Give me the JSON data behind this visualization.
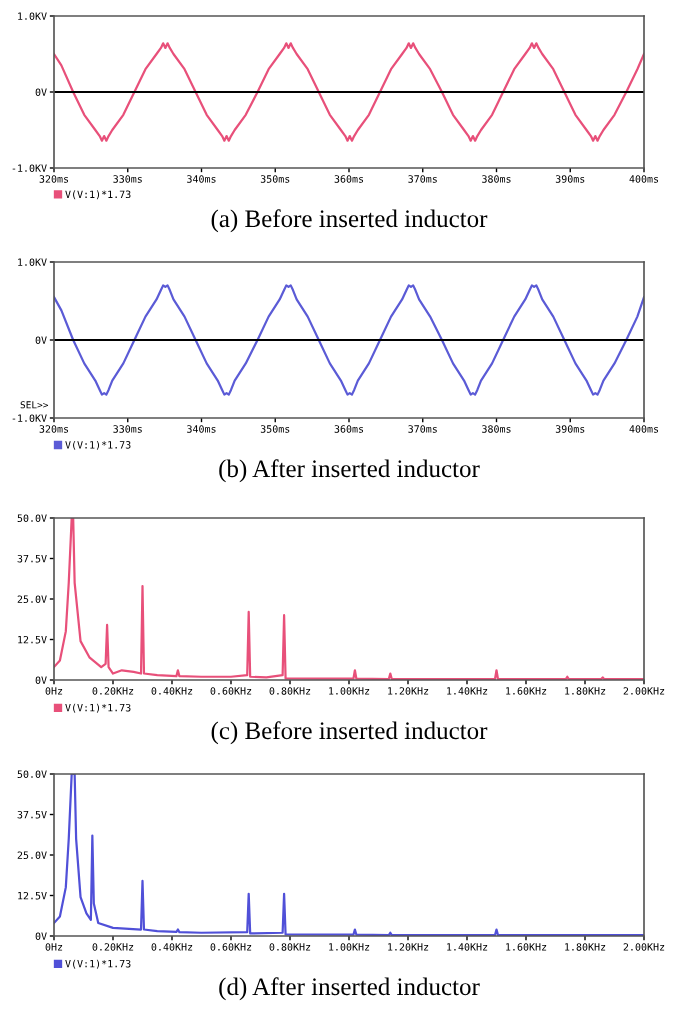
{
  "chart_data": [
    {
      "type": "line",
      "title": "(a) Before inserted inductor",
      "legend": "bottom left",
      "grid": false,
      "x": [
        320,
        321,
        322.6,
        324.1,
        325.6,
        326.2,
        326.5,
        326.8,
        327.1,
        327.4,
        327.9,
        329.4,
        330.9,
        332.4,
        333.9,
        334.5,
        334.8,
        335.1,
        335.4,
        335.7,
        336.2,
        337.7,
        339.2,
        340.7,
        342.2,
        342.8,
        343.1,
        343.4,
        343.7,
        344.0,
        344.5,
        346.0,
        347.6,
        349.1,
        350.6,
        351.2,
        351.5,
        351.8,
        352.1,
        352.4,
        352.9,
        354.4,
        355.9,
        357.4,
        358.9,
        359.5,
        359.8,
        360.1,
        360.4,
        360.7,
        361.2,
        362.7,
        364.2,
        365.7,
        367.2,
        367.8,
        368.1,
        368.4,
        368.7,
        369.0,
        369.5,
        371.0,
        372.6,
        374.1,
        375.6,
        376.2,
        376.5,
        376.8,
        377.1,
        377.4,
        377.9,
        379.4,
        380.9,
        382.4,
        383.9,
        384.5,
        384.8,
        385.1,
        385.4,
        385.7,
        386.2,
        387.7,
        389.2,
        390.7,
        392.2,
        392.8,
        393.1,
        393.4,
        393.7,
        394.0,
        394.5,
        396.0,
        397.6,
        399.1,
        400
      ],
      "series": [
        {
          "name": "V(V:1)*1.73",
          "color": "#e8507a",
          "values": [
            0.5,
            0.35,
            0,
            -0.3,
            -0.5,
            -0.58,
            -0.64,
            -0.58,
            -0.64,
            -0.58,
            -0.5,
            -0.3,
            0,
            0.3,
            0.5,
            0.58,
            0.64,
            0.58,
            0.64,
            0.58,
            0.5,
            0.3,
            0,
            -0.3,
            -0.5,
            -0.58,
            -0.64,
            -0.58,
            -0.64,
            -0.58,
            -0.5,
            -0.3,
            0,
            0.3,
            0.5,
            0.58,
            0.64,
            0.58,
            0.64,
            0.58,
            0.5,
            0.3,
            0,
            -0.3,
            -0.5,
            -0.58,
            -0.64,
            -0.58,
            -0.64,
            -0.58,
            -0.5,
            -0.3,
            0,
            0.3,
            0.5,
            0.58,
            0.64,
            0.58,
            0.64,
            0.58,
            0.5,
            0.3,
            0,
            -0.3,
            -0.5,
            -0.58,
            -0.64,
            -0.58,
            -0.64,
            -0.58,
            -0.5,
            -0.3,
            0,
            0.3,
            0.5,
            0.58,
            0.64,
            0.58,
            0.64,
            0.58,
            0.5,
            0.3,
            0,
            -0.3,
            -0.5,
            -0.58,
            -0.64,
            -0.58,
            -0.64,
            -0.58,
            -0.5,
            -0.3,
            0,
            0.3,
            0.5
          ]
        }
      ],
      "xlim": [
        320,
        400
      ],
      "ylim": [
        -1,
        1
      ],
      "xticks": [
        {
          "value": 320,
          "label": "320ms"
        },
        {
          "value": 330,
          "label": "330ms"
        },
        {
          "value": 340,
          "label": "340ms"
        },
        {
          "value": 350,
          "label": "350ms"
        },
        {
          "value": 360,
          "label": "360ms"
        },
        {
          "value": 370,
          "label": "370ms"
        },
        {
          "value": 380,
          "label": "380ms"
        },
        {
          "value": 390,
          "label": "390ms"
        },
        {
          "value": 400,
          "label": "400ms"
        }
      ],
      "yticks": [
        {
          "value": -1,
          "label": "-1.0KV"
        },
        {
          "value": 0,
          "label": "0V"
        },
        {
          "value": 1,
          "label": "1.0KV"
        }
      ],
      "ref_lines": [
        {
          "axis": "y",
          "value": 0,
          "color": "#000000"
        }
      ]
    },
    {
      "type": "line",
      "title": "(b) After inserted inductor",
      "legend": "bottom left",
      "grid": false,
      "annotations": [
        "SEL>>"
      ],
      "x": [
        320,
        321,
        322.6,
        324.1,
        325.6,
        326.2,
        326.5,
        326.8,
        327.1,
        327.4,
        327.9,
        329.4,
        330.9,
        332.4,
        333.9,
        334.5,
        334.8,
        335.1,
        335.4,
        335.7,
        336.2,
        337.7,
        339.2,
        340.7,
        342.2,
        342.8,
        343.1,
        343.4,
        343.7,
        344.0,
        344.5,
        346.0,
        347.6,
        349.1,
        350.6,
        351.2,
        351.5,
        351.8,
        352.1,
        352.4,
        352.9,
        354.4,
        355.9,
        357.4,
        358.9,
        359.5,
        359.8,
        360.1,
        360.4,
        360.7,
        361.2,
        362.7,
        364.2,
        365.7,
        367.2,
        367.8,
        368.1,
        368.4,
        368.7,
        369.0,
        369.5,
        371.0,
        372.6,
        374.1,
        375.6,
        376.2,
        376.5,
        376.8,
        377.1,
        377.4,
        377.9,
        379.4,
        380.9,
        382.4,
        383.9,
        384.5,
        384.8,
        385.1,
        385.4,
        385.7,
        386.2,
        387.7,
        389.2,
        390.7,
        392.2,
        392.8,
        393.1,
        393.4,
        393.7,
        394.0,
        394.5,
        396.0,
        397.6,
        399.1,
        400
      ],
      "series": [
        {
          "name": "V(V:1)*1.73",
          "color": "#5b5bd6",
          "values": [
            0.55,
            0.38,
            0,
            -0.3,
            -0.52,
            -0.64,
            -0.7,
            -0.68,
            -0.7,
            -0.64,
            -0.52,
            -0.3,
            0,
            0.3,
            0.52,
            0.64,
            0.7,
            0.68,
            0.7,
            0.64,
            0.52,
            0.3,
            0,
            -0.3,
            -0.52,
            -0.64,
            -0.7,
            -0.68,
            -0.7,
            -0.64,
            -0.52,
            -0.3,
            0,
            0.3,
            0.52,
            0.64,
            0.7,
            0.68,
            0.7,
            0.64,
            0.52,
            0.3,
            0,
            -0.3,
            -0.52,
            -0.64,
            -0.7,
            -0.68,
            -0.7,
            -0.64,
            -0.52,
            -0.3,
            0,
            0.3,
            0.52,
            0.64,
            0.7,
            0.68,
            0.7,
            0.64,
            0.52,
            0.3,
            0,
            -0.3,
            -0.52,
            -0.64,
            -0.7,
            -0.68,
            -0.7,
            -0.64,
            -0.52,
            -0.3,
            0,
            0.3,
            0.52,
            0.64,
            0.7,
            0.68,
            0.7,
            0.64,
            0.52,
            0.3,
            0,
            -0.3,
            -0.52,
            -0.64,
            -0.7,
            -0.68,
            -0.7,
            -0.64,
            -0.52,
            -0.3,
            0,
            0.3,
            0.55
          ]
        }
      ],
      "xlim": [
        320,
        400
      ],
      "ylim": [
        -1,
        1
      ],
      "xticks": [
        {
          "value": 320,
          "label": "320ms"
        },
        {
          "value": 330,
          "label": "330ms"
        },
        {
          "value": 340,
          "label": "340ms"
        },
        {
          "value": 350,
          "label": "350ms"
        },
        {
          "value": 360,
          "label": "360ms"
        },
        {
          "value": 370,
          "label": "370ms"
        },
        {
          "value": 380,
          "label": "380ms"
        },
        {
          "value": 390,
          "label": "390ms"
        },
        {
          "value": 400,
          "label": "400ms"
        }
      ],
      "yticks": [
        {
          "value": -1,
          "label": "-1.0KV"
        },
        {
          "value": 0,
          "label": "0V"
        },
        {
          "value": 1,
          "label": "1.0KV"
        }
      ],
      "ref_lines": [
        {
          "axis": "y",
          "value": 0,
          "color": "#000000"
        }
      ]
    },
    {
      "type": "line",
      "title": "(c) Before inserted inductor",
      "legend": "bottom left",
      "grid": false,
      "x": [
        0,
        0.02,
        0.04,
        0.05,
        0.06,
        0.065,
        0.07,
        0.09,
        0.12,
        0.16,
        0.175,
        0.18,
        0.185,
        0.2,
        0.23,
        0.27,
        0.295,
        0.3,
        0.305,
        0.35,
        0.415,
        0.42,
        0.425,
        0.5,
        0.6,
        0.655,
        0.66,
        0.665,
        0.72,
        0.775,
        0.78,
        0.785,
        0.9,
        1.015,
        1.02,
        1.025,
        1.135,
        1.14,
        1.145,
        1.3,
        1.495,
        1.5,
        1.505,
        1.735,
        1.74,
        1.745,
        1.855,
        1.86,
        1.865,
        2.0
      ],
      "series": [
        {
          "name": "V(V:1)*1.73",
          "color": "#e8507a",
          "values": [
            4,
            6,
            15,
            30,
            50,
            50,
            30,
            12,
            7,
            4,
            5,
            17,
            4,
            2,
            3,
            2.5,
            2,
            29,
            2,
            1.5,
            1.2,
            3,
            1.2,
            1,
            1,
            1.5,
            21,
            1,
            0.8,
            1.5,
            20,
            0.5,
            0.4,
            0.4,
            3,
            0.4,
            0.3,
            2,
            0.3,
            0.3,
            0.3,
            3,
            0.3,
            0.3,
            1,
            0.3,
            0.3,
            0.8,
            0.3,
            0.3
          ]
        }
      ],
      "xlim": [
        0,
        2
      ],
      "ylim": [
        0,
        50
      ],
      "xticks": [
        {
          "value": 0,
          "label": "0Hz"
        },
        {
          "value": 0.2,
          "label": "0.20KHz"
        },
        {
          "value": 0.4,
          "label": "0.40KHz"
        },
        {
          "value": 0.6,
          "label": "0.60KHz"
        },
        {
          "value": 0.8,
          "label": "0.80KHz"
        },
        {
          "value": 1.0,
          "label": "1.00KHz"
        },
        {
          "value": 1.2,
          "label": "1.20KHz"
        },
        {
          "value": 1.4,
          "label": "1.40KHz"
        },
        {
          "value": 1.6,
          "label": "1.60KHz"
        },
        {
          "value": 1.8,
          "label": "1.80KHz"
        },
        {
          "value": 2.0,
          "label": "2.00KHz"
        }
      ],
      "yticks": [
        {
          "value": 0,
          "label": "0V"
        },
        {
          "value": 12.5,
          "label": "12.5V"
        },
        {
          "value": 25,
          "label": "25.0V"
        },
        {
          "value": 37.5,
          "label": "37.5V"
        },
        {
          "value": 50,
          "label": "50.0V"
        }
      ]
    },
    {
      "type": "line",
      "title": "(d) After inserted inductor",
      "legend": "bottom left",
      "grid": false,
      "x": [
        0,
        0.02,
        0.04,
        0.05,
        0.06,
        0.07,
        0.075,
        0.09,
        0.11,
        0.125,
        0.13,
        0.135,
        0.15,
        0.2,
        0.295,
        0.3,
        0.305,
        0.35,
        0.415,
        0.42,
        0.425,
        0.5,
        0.655,
        0.66,
        0.665,
        0.775,
        0.78,
        0.785,
        1.015,
        1.02,
        1.025,
        1.135,
        1.14,
        1.145,
        1.495,
        1.5,
        1.505,
        2.0
      ],
      "series": [
        {
          "name": "V(V:1)*1.73",
          "color": "#5050d8",
          "values": [
            4,
            6,
            15,
            30,
            50,
            50,
            30,
            12,
            7,
            5,
            31,
            10,
            4,
            2.5,
            2,
            17,
            2,
            1.5,
            1.3,
            2,
            1.2,
            1,
            1.2,
            13,
            0.8,
            1,
            13,
            0.5,
            0.4,
            2,
            0.4,
            0.3,
            1,
            0.3,
            0.3,
            2,
            0.3,
            0.3
          ]
        }
      ],
      "xlim": [
        0,
        2
      ],
      "ylim": [
        0,
        50
      ],
      "xticks": [
        {
          "value": 0,
          "label": "0Hz"
        },
        {
          "value": 0.2,
          "label": "0.20KHz"
        },
        {
          "value": 0.4,
          "label": "0.40KHz"
        },
        {
          "value": 0.6,
          "label": "0.60KHz"
        },
        {
          "value": 0.8,
          "label": "0.80KHz"
        },
        {
          "value": 1.0,
          "label": "1.00KHz"
        },
        {
          "value": 1.2,
          "label": "1.20KHz"
        },
        {
          "value": 1.4,
          "label": "1.40KHz"
        },
        {
          "value": 1.6,
          "label": "1.60KHz"
        },
        {
          "value": 1.8,
          "label": "1.80KHz"
        },
        {
          "value": 2.0,
          "label": "2.00KHz"
        }
      ],
      "yticks": [
        {
          "value": 0,
          "label": "0V"
        },
        {
          "value": 12.5,
          "label": "12.5V"
        },
        {
          "value": 25,
          "label": "25.0V"
        },
        {
          "value": 37.5,
          "label": "37.5V"
        },
        {
          "value": 50,
          "label": "50.0V"
        }
      ]
    }
  ]
}
